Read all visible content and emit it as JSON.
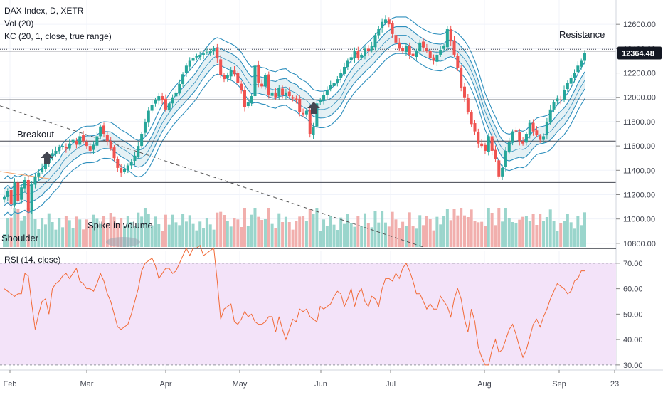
{
  "legend": {
    "line1": "DAX Index, D, XETR",
    "line2": "Vol (20)",
    "line3": "KC (20, 1, close, true range)",
    "rsi": "RSI (14, close)"
  },
  "annotations": {
    "breakout": "Breakout",
    "shoulder": "Shoulder",
    "spike": "Spike in volume",
    "resistance": "Resistance"
  },
  "colors": {
    "up": "#26a69a",
    "down": "#ef5350",
    "kc": "#2e8fbd",
    "kc_fill": "#d4e7ee",
    "rsi_line": "#f26b38",
    "rsi_band": "#f3e3f9",
    "last_price_bg": "#131722"
  },
  "chart_data": [
    {
      "type": "candlestick",
      "title": "DAX Index, D, XETR",
      "price_axis_ticks": [
        "12600.00",
        "12400.00",
        "12200.00",
        "12000.00",
        "11800.00",
        "11600.00",
        "11400.00",
        "11200.00",
        "11000.00",
        "10800.00"
      ],
      "ylim": [
        10770,
        12800
      ],
      "last_price_label": "12364.48",
      "x_labels": [
        "Feb",
        "Mar",
        "Apr",
        "May",
        "Jun",
        "Jul",
        "Aug",
        "Sep",
        "23"
      ],
      "horizontal_levels": [
        12380,
        11980,
        11640,
        11300,
        10820
      ],
      "close_series": [
        11180,
        11230,
        11120,
        11300,
        11150,
        11260,
        11320,
        11060,
        11290,
        11350,
        11380,
        11420,
        11460,
        11510,
        11540,
        11560,
        11590,
        11600,
        11580,
        11620,
        11650,
        11610,
        11680,
        11640,
        11600,
        11560,
        11610,
        11680,
        11760,
        11700,
        11640,
        11580,
        11500,
        11420,
        11380,
        11410,
        11440,
        11470,
        11520,
        11600,
        11700,
        11800,
        11890,
        11940,
        11980,
        12010,
        11980,
        11900,
        11950,
        12000,
        12040,
        12110,
        12190,
        12260,
        12300,
        12320,
        12340,
        12350,
        12360,
        12370,
        12380,
        12400,
        12320,
        12180,
        12150,
        12180,
        12220,
        12190,
        12120,
        12060,
        11920,
        11960,
        12010,
        12260,
        12120,
        12090,
        12180,
        12020,
        12040,
        12000,
        12080,
        12020,
        12040,
        12010,
        11990,
        11980,
        11880,
        11860,
        11890,
        11700,
        11760,
        11950,
        11980,
        12020,
        12060,
        12100,
        12120,
        12150,
        12200,
        12250,
        12300,
        12330,
        12380,
        12320,
        12350,
        12400,
        12380,
        12420,
        12510,
        12560,
        12620,
        12640,
        12600,
        12520,
        12450,
        12400,
        12380,
        12420,
        12350,
        12340,
        12380,
        12450,
        12410,
        12380,
        12320,
        12300,
        12350,
        12390,
        12420,
        12560,
        12460,
        12350,
        12240,
        12080,
        12000,
        11880,
        11780,
        11720,
        11620,
        11600,
        11560,
        11680,
        11560,
        11490,
        11350,
        11420,
        11560,
        11630,
        11720,
        11720,
        11640,
        11620,
        11700,
        11790,
        11720,
        11690,
        11650,
        11680,
        11800,
        11900,
        11960,
        11990,
        11980,
        12060,
        12120,
        12160,
        12200,
        12260,
        12300,
        12364
      ],
      "volume_note": "volume bars shown as histogram at bottom of price pane"
    },
    {
      "type": "line",
      "title": "RSI (14, close)",
      "y_ticks": [
        "70.00",
        "60.00",
        "50.00",
        "40.00",
        "30.00"
      ],
      "ylim": [
        28,
        75
      ],
      "band": [
        30,
        70
      ],
      "values": [
        60,
        59,
        58,
        57,
        58,
        58,
        66,
        65,
        54,
        44,
        50,
        55,
        56,
        50,
        60,
        62,
        63,
        65,
        66,
        64,
        66,
        68,
        63,
        62,
        60,
        60,
        59,
        62,
        66,
        63,
        58,
        55,
        50,
        45,
        44,
        45,
        46,
        50,
        55,
        60,
        67,
        70,
        71,
        72,
        69,
        64,
        66,
        68,
        68,
        66,
        67,
        70,
        73,
        76,
        73,
        76,
        76,
        77,
        73,
        74,
        75,
        76,
        63,
        48,
        52,
        53,
        54,
        47,
        46,
        48,
        51,
        49,
        50,
        47,
        46,
        46,
        47,
        49,
        49,
        43,
        49,
        44,
        40,
        44,
        48,
        47,
        52,
        51,
        52,
        49,
        48,
        47,
        53,
        52,
        53,
        54,
        57,
        59,
        58,
        53,
        56,
        60,
        53,
        58,
        60,
        55,
        53,
        57,
        56,
        53,
        60,
        64,
        64,
        63,
        66,
        64,
        68,
        70,
        67,
        63,
        58,
        58,
        55,
        52,
        54,
        52,
        52,
        57,
        55,
        53,
        49,
        56,
        60,
        56,
        48,
        43,
        52,
        47,
        37,
        33,
        30,
        30,
        36,
        40,
        35,
        36,
        40,
        44,
        46,
        42,
        37,
        33,
        36,
        41,
        46,
        48,
        45,
        49,
        52,
        56,
        59,
        62,
        61,
        60,
        58,
        59,
        63,
        64,
        67,
        67
      ]
    }
  ]
}
